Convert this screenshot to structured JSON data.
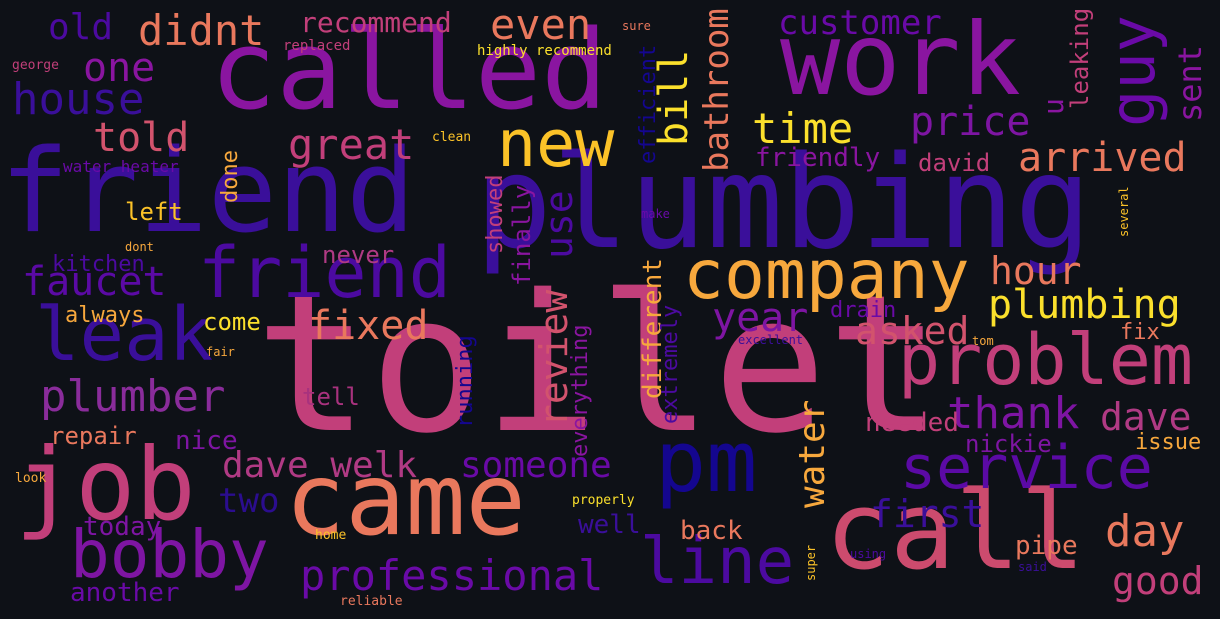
{
  "background": "#0e1117",
  "words": [
    {
      "text": "toilet",
      "color": "#c23f7a"
    },
    {
      "text": "friend",
      "color": "#3a0f9a"
    },
    {
      "text": "plumbing",
      "color": "#3a0f9a"
    },
    {
      "text": "called",
      "color": "#8a15a0"
    },
    {
      "text": "came",
      "color": "#e9785d"
    },
    {
      "text": "call",
      "color": "#cc4b6e"
    },
    {
      "text": "job",
      "color": "#c23f7a"
    },
    {
      "text": "work",
      "color": "#8a15a0"
    },
    {
      "text": "pm",
      "color": "#14068f"
    },
    {
      "text": "company",
      "color": "#f7a83d"
    },
    {
      "text": "new",
      "color": "#fbc228"
    },
    {
      "text": "friend",
      "color": "#4c0aa0"
    },
    {
      "text": "leak",
      "color": "#3a0f9a"
    },
    {
      "text": "problem",
      "color": "#c23f7a"
    },
    {
      "text": "service",
      "color": "#5b0aa5"
    },
    {
      "text": "guy",
      "color": "#6a0aa7"
    },
    {
      "text": "line",
      "color": "#4c0aa0"
    },
    {
      "text": "bobby",
      "color": "#7e15a3"
    },
    {
      "text": "professional",
      "color": "#6a0aa7"
    },
    {
      "text": "plumber",
      "color": "#8a2c9b"
    },
    {
      "text": "faucet",
      "color": "#5b0aa5"
    },
    {
      "text": "house",
      "color": "#3a0f9a"
    },
    {
      "text": "didnt",
      "color": "#e9785d"
    },
    {
      "text": "even",
      "color": "#e9785d"
    },
    {
      "text": "one",
      "color": "#8a15a0"
    },
    {
      "text": "told",
      "color": "#d2536d"
    },
    {
      "text": "great",
      "color": "#c23f7a"
    },
    {
      "text": "time",
      "color": "#fbe02c"
    },
    {
      "text": "price",
      "color": "#7e15a3"
    },
    {
      "text": "customer",
      "color": "#6a0aa7"
    },
    {
      "text": "arrived",
      "color": "#e9785d"
    },
    {
      "text": "plumbing",
      "color": "#fbe02c"
    },
    {
      "text": "hour",
      "color": "#e9785d"
    },
    {
      "text": "fixed",
      "color": "#e9785d"
    },
    {
      "text": "year",
      "color": "#7e15a3"
    },
    {
      "text": "asked",
      "color": "#d2536d"
    },
    {
      "text": "thank",
      "color": "#7e15a3"
    },
    {
      "text": "dave",
      "color": "#b03a84"
    },
    {
      "text": "dave welk",
      "color": "#b03a84"
    },
    {
      "text": "someone",
      "color": "#6a0aa7"
    },
    {
      "text": "water",
      "color": "#f7a83d"
    },
    {
      "text": "first",
      "color": "#3a0f9a"
    },
    {
      "text": "day",
      "color": "#e9785d"
    },
    {
      "text": "good",
      "color": "#c23f7a"
    },
    {
      "text": "two",
      "color": "#2b0d8f"
    },
    {
      "text": "bill",
      "color": "#fbe02c"
    },
    {
      "text": "bathroom",
      "color": "#e9785d"
    },
    {
      "text": "use",
      "color": "#4c0aa0"
    },
    {
      "text": "review",
      "color": "#d2536d"
    },
    {
      "text": "old",
      "color": "#4c0aa0"
    },
    {
      "text": "recommend",
      "color": "#c23f7a"
    },
    {
      "text": "sent",
      "color": "#8a15a0"
    },
    {
      "text": "leaking",
      "color": "#c23f7a"
    },
    {
      "text": "u",
      "color": "#8a15a0"
    },
    {
      "text": "efficient",
      "color": "#14068f"
    },
    {
      "text": "friendly",
      "color": "#8a15a0"
    },
    {
      "text": "david",
      "color": "#c23f7a"
    },
    {
      "text": "left",
      "color": "#fbc228"
    },
    {
      "text": "done",
      "color": "#f7a83d"
    },
    {
      "text": "kitchen",
      "color": "#4c0aa0"
    },
    {
      "text": "never",
      "color": "#b03a84"
    },
    {
      "text": "always",
      "color": "#f7a83d"
    },
    {
      "text": "come",
      "color": "#fbe02c"
    },
    {
      "text": "repair",
      "color": "#e9785d"
    },
    {
      "text": "nice",
      "color": "#7e15a3"
    },
    {
      "text": "tell",
      "color": "#a8327e"
    },
    {
      "text": "showed",
      "color": "#c23f7a"
    },
    {
      "text": "finally",
      "color": "#8a15a0"
    },
    {
      "text": "running",
      "color": "#14068f"
    },
    {
      "text": "everything",
      "color": "#8a15a0"
    },
    {
      "text": "different",
      "color": "#f7a83d"
    },
    {
      "text": "extremely",
      "color": "#4c0aa0"
    },
    {
      "text": "needed",
      "color": "#c23f7a"
    },
    {
      "text": "nickie",
      "color": "#7e15a3"
    },
    {
      "text": "issue",
      "color": "#f7a83d"
    },
    {
      "text": "fix",
      "color": "#e9785d"
    },
    {
      "text": "drain",
      "color": "#6a0aa7"
    },
    {
      "text": "today",
      "color": "#7e15a3"
    },
    {
      "text": "another",
      "color": "#6a0aa7"
    },
    {
      "text": "well",
      "color": "#3a0f9a"
    },
    {
      "text": "back",
      "color": "#e9785d"
    },
    {
      "text": "pipe",
      "color": "#e9785d"
    },
    {
      "text": "water heater",
      "color": "#6a0aa7"
    },
    {
      "text": "highly recommend",
      "color": "#fbe02c"
    },
    {
      "text": "replaced",
      "color": "#c23f7a"
    },
    {
      "text": "george",
      "color": "#c23f7a"
    },
    {
      "text": "sure",
      "color": "#e9785d"
    },
    {
      "text": "clean",
      "color": "#fbc228"
    },
    {
      "text": "make",
      "color": "#6a0aa7"
    },
    {
      "text": "dont",
      "color": "#f7a83d"
    },
    {
      "text": "several",
      "color": "#fbc228"
    },
    {
      "text": "fair",
      "color": "#f7a83d"
    },
    {
      "text": "excellent",
      "color": "#3a0f9a"
    },
    {
      "text": "tom",
      "color": "#f7a83d"
    },
    {
      "text": "look",
      "color": "#f7a83d"
    },
    {
      "text": "home",
      "color": "#fbc228"
    },
    {
      "text": "properly",
      "color": "#fbe02c"
    },
    {
      "text": "super",
      "color": "#fbc228"
    },
    {
      "text": "using",
      "color": "#4c0aa0"
    },
    {
      "text": "said",
      "color": "#3a0f9a"
    },
    {
      "text": "reliable",
      "color": "#e9785d"
    }
  ]
}
